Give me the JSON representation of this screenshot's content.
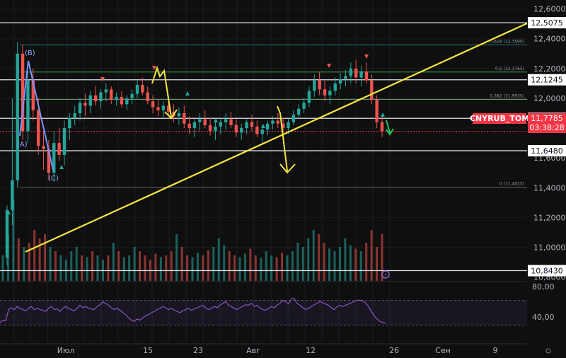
{
  "chart_data": {
    "type": "candlestick",
    "symbol_watermark": "CNYRUB_TOM",
    "price_axis": {
      "ylim": [
        10.76,
        12.66
      ],
      "ticks": [
        "12,6000",
        "12,4000",
        "12,2000",
        "12,0000",
        "11,8000",
        "11,6000",
        "11,4000",
        "11,2000",
        "11,0000",
        "10,8000"
      ]
    },
    "time_axis": {
      "ticks": [
        "Июл",
        "15",
        "23",
        "Авг",
        "12",
        "26",
        "Сен",
        "9"
      ]
    },
    "current_price": {
      "symbol": "CNYRUB_TOM",
      "value": "11,7785",
      "countdown": "03:38:28",
      "color": "#f23645"
    },
    "horizontal_levels": [
      {
        "value": 12.5075,
        "label": "12,5075"
      },
      {
        "value": 12.1245,
        "label": "12,1245"
      },
      {
        "value": 11.8655,
        "label": "11,8655"
      },
      {
        "value": 11.648,
        "label": "11,6480"
      },
      {
        "value": 10.843,
        "label": "10,8430"
      }
    ],
    "fibonacci": [
      {
        "value": 12.359,
        "label": "0,618 (12,3590)",
        "color": "#26a69a"
      },
      {
        "value": 12.1765,
        "label": "0,5 (12,1765)",
        "color": "#4caf50"
      },
      {
        "value": 11.9935,
        "label": "0,382 (11,9935)",
        "color": "#81c784"
      },
      {
        "value": 11.4025,
        "label": "0 (11,4025)",
        "color": "#787b86"
      }
    ],
    "wave_labels": [
      "(A)",
      "(B)",
      "(C)"
    ],
    "rsi": {
      "ticks": [
        "80,00",
        "40,00"
      ],
      "upper": 70,
      "lower": 30,
      "values": [
        34,
        38,
        37,
        55,
        58,
        55,
        60,
        57,
        55,
        53,
        57,
        60,
        55,
        57,
        55,
        54,
        52,
        57,
        60,
        55,
        56,
        52,
        57,
        60,
        57,
        55,
        53,
        57,
        62,
        58,
        60,
        57,
        56,
        55,
        60,
        63,
        67,
        65,
        62,
        58,
        55,
        57,
        54,
        50,
        47,
        42,
        38,
        36,
        40,
        38,
        42,
        45,
        47,
        50,
        52,
        55,
        57,
        60,
        58,
        55,
        57,
        54,
        52,
        50,
        53,
        55,
        57,
        54,
        56,
        58,
        60,
        62,
        58,
        55,
        57,
        60,
        58,
        62,
        65,
        68,
        62,
        60,
        57,
        55,
        58,
        60,
        63,
        62,
        65,
        60,
        62,
        58,
        55,
        54,
        57,
        60,
        58,
        62,
        65,
        70,
        68,
        64,
        72,
        73,
        65,
        62,
        58,
        55,
        57,
        60,
        63,
        65,
        68,
        66,
        64,
        62,
        58,
        55,
        60,
        62,
        60,
        62,
        64,
        66,
        68,
        70,
        70,
        69,
        66,
        60,
        52,
        45,
        40,
        36,
        34,
        33
      ]
    },
    "price_bars": [
      [
        10.93,
        11.28,
        10.88,
        11.25
      ],
      [
        11.25,
        12.0,
        11.15,
        11.45
      ],
      [
        11.45,
        12.38,
        11.4,
        12.3
      ],
      [
        12.3,
        12.36,
        11.72,
        11.78
      ],
      [
        11.78,
        12.18,
        11.7,
        12.12
      ],
      [
        12.12,
        12.2,
        11.85,
        11.92
      ],
      [
        11.92,
        12.0,
        11.62,
        11.68
      ],
      [
        11.68,
        11.78,
        11.52,
        11.66
      ],
      [
        11.66,
        11.72,
        11.45,
        11.5
      ],
      [
        11.5,
        11.78,
        11.44,
        11.7
      ],
      [
        11.7,
        11.8,
        11.58,
        11.62
      ],
      [
        11.62,
        11.85,
        11.55,
        11.8
      ],
      [
        11.8,
        11.9,
        11.72,
        11.87
      ],
      [
        11.87,
        11.95,
        11.82,
        11.9
      ],
      [
        11.9,
        12.0,
        11.85,
        11.97
      ],
      [
        11.97,
        12.03,
        11.88,
        11.95
      ],
      [
        11.95,
        12.05,
        11.9,
        12.02
      ],
      [
        12.02,
        12.08,
        11.95,
        11.98
      ],
      [
        11.98,
        12.06,
        11.93,
        12.04
      ],
      [
        12.04,
        12.1,
        11.98,
        12.06
      ],
      [
        12.06,
        12.08,
        11.96,
        11.99
      ],
      [
        11.99,
        12.04,
        11.95,
        12.01
      ],
      [
        12.01,
        12.05,
        11.94,
        11.96
      ],
      [
        11.96,
        12.02,
        11.92,
        12.0
      ],
      [
        12.0,
        12.06,
        11.96,
        12.03
      ],
      [
        12.03,
        12.12,
        12.0,
        12.09
      ],
      [
        12.09,
        12.14,
        12.02,
        12.04
      ],
      [
        12.04,
        12.08,
        11.96,
        11.98
      ],
      [
        11.98,
        12.02,
        11.9,
        11.94
      ],
      [
        11.94,
        11.99,
        11.88,
        11.92
      ],
      [
        11.92,
        11.98,
        11.86,
        11.95
      ],
      [
        11.95,
        12.0,
        11.89,
        11.91
      ],
      [
        11.91,
        11.96,
        11.84,
        11.88
      ],
      [
        11.88,
        11.94,
        11.82,
        11.9
      ],
      [
        11.9,
        11.95,
        11.8,
        11.83
      ],
      [
        11.83,
        11.88,
        11.76,
        11.8
      ],
      [
        11.8,
        11.86,
        11.74,
        11.84
      ],
      [
        11.84,
        11.9,
        11.78,
        11.86
      ],
      [
        11.86,
        11.92,
        11.8,
        11.82
      ],
      [
        11.82,
        11.87,
        11.75,
        11.78
      ],
      [
        11.78,
        11.84,
        11.72,
        11.81
      ],
      [
        11.81,
        11.87,
        11.76,
        11.84
      ],
      [
        11.84,
        11.9,
        11.79,
        11.86
      ],
      [
        11.86,
        11.91,
        11.8,
        11.82
      ],
      [
        11.82,
        11.86,
        11.74,
        11.77
      ],
      [
        11.77,
        11.83,
        11.72,
        11.8
      ],
      [
        11.8,
        11.86,
        11.76,
        11.84
      ],
      [
        11.84,
        11.89,
        11.78,
        11.81
      ],
      [
        11.81,
        11.85,
        11.74,
        11.76
      ],
      [
        11.76,
        11.82,
        11.7,
        11.79
      ],
      [
        11.79,
        11.85,
        11.75,
        11.83
      ],
      [
        11.83,
        11.88,
        11.79,
        11.85
      ],
      [
        11.85,
        11.9,
        11.8,
        11.83
      ],
      [
        11.83,
        11.87,
        11.77,
        11.8
      ],
      [
        11.8,
        11.86,
        11.76,
        11.84
      ],
      [
        11.84,
        11.92,
        11.82,
        11.89
      ],
      [
        11.89,
        11.96,
        11.86,
        11.93
      ],
      [
        11.93,
        12.0,
        11.9,
        11.97
      ],
      [
        11.97,
        12.08,
        11.94,
        12.05
      ],
      [
        12.05,
        12.16,
        12.01,
        12.12
      ],
      [
        12.12,
        12.18,
        12.02,
        12.06
      ],
      [
        12.06,
        12.12,
        11.98,
        12.02
      ],
      [
        12.02,
        12.08,
        11.96,
        12.05
      ],
      [
        12.05,
        12.14,
        12.02,
        12.1
      ],
      [
        12.1,
        12.17,
        12.06,
        12.13
      ],
      [
        12.13,
        12.19,
        12.08,
        12.15
      ],
      [
        12.15,
        12.24,
        12.1,
        12.2
      ],
      [
        12.2,
        12.26,
        12.1,
        12.14
      ],
      [
        12.14,
        12.22,
        12.08,
        12.18
      ],
      [
        12.18,
        12.24,
        12.1,
        12.12
      ],
      [
        12.12,
        12.16,
        11.96,
        11.99
      ],
      [
        11.99,
        12.02,
        11.8,
        11.84
      ],
      [
        11.84,
        11.88,
        11.74,
        11.78
      ]
    ],
    "volume": [
      0.3,
      0.55,
      0.95,
      0.5,
      0.4,
      0.45,
      0.6,
      0.5,
      0.55,
      0.4,
      0.35,
      0.3,
      0.25,
      0.35,
      0.4,
      0.3,
      0.28,
      0.35,
      0.3,
      0.25,
      0.3,
      0.45,
      0.35,
      0.28,
      0.3,
      0.4,
      0.35,
      0.3,
      0.25,
      0.32,
      0.28,
      0.3,
      0.35,
      0.55,
      0.4,
      0.3,
      0.28,
      0.33,
      0.3,
      0.36,
      0.4,
      0.5,
      0.42,
      0.35,
      0.3,
      0.28,
      0.32,
      0.38,
      0.3,
      0.27,
      0.35,
      0.3,
      0.28,
      0.33,
      0.3,
      0.35,
      0.45,
      0.4,
      0.5,
      0.6,
      0.55,
      0.45,
      0.38,
      0.35,
      0.4,
      0.5,
      0.42,
      0.38,
      0.35,
      0.45,
      0.6,
      0.4,
      0.55
    ],
    "volume_colors": {
      "up": "#26a69a",
      "down": "#ef5350"
    },
    "candle_colors": {
      "up": "#26a69a",
      "down": "#ef5350"
    }
  }
}
